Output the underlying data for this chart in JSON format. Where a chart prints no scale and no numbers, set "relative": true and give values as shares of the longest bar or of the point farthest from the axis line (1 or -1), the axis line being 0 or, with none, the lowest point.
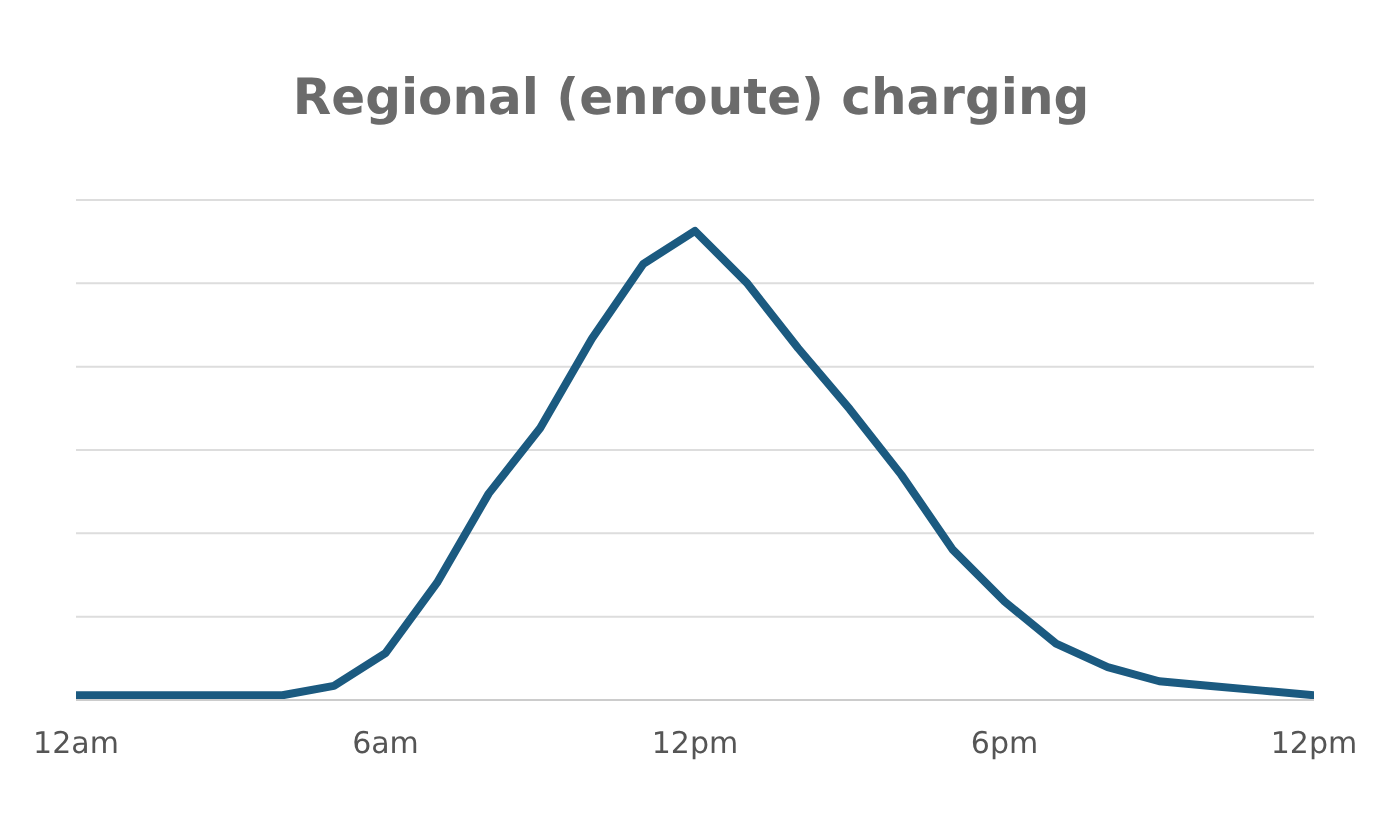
{
  "chart_data": {
    "type": "line",
    "title": "Regional (enroute) charging",
    "relative": true,
    "grid": "y",
    "marker": "none",
    "line_style": "solid",
    "categories": [
      "12am",
      null,
      null,
      null,
      null,
      null,
      "6am",
      null,
      null,
      null,
      null,
      null,
      "12pm",
      null,
      null,
      null,
      null,
      null,
      "6pm",
      null,
      null,
      null,
      null,
      null,
      "12pm"
    ],
    "series": [
      {
        "color": "#1b5a80",
        "values": [
          0.01,
          0.01,
          0.01,
          0.01,
          0.01,
          0.03,
          0.1,
          0.25,
          0.44,
          0.58,
          0.77,
          0.93,
          1,
          0.89,
          0.75,
          0.62,
          0.48,
          0.32,
          0.21,
          0.12,
          0.07,
          0.04,
          0.03,
          0.02,
          0.01
        ]
      }
    ]
  }
}
